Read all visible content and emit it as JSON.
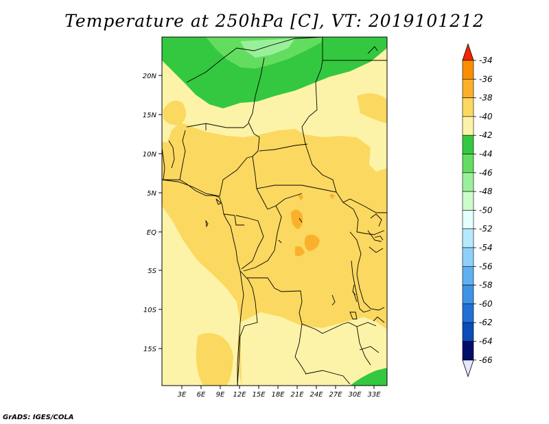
{
  "title": "Temperature at 250hPa [C], VT: 2019101212",
  "footer": "GrADS: IGES/COLA",
  "map": {
    "lat_ticks": [
      "20N",
      "15N",
      "10N",
      "5N",
      "EQ",
      "5S",
      "10S",
      "15S"
    ],
    "lon_ticks": [
      "3E",
      "6E",
      "9E",
      "12E",
      "15E",
      "18E",
      "21E",
      "24E",
      "27E",
      "30E",
      "33E"
    ]
  },
  "colorbar": {
    "labels": [
      "-34",
      "-36",
      "-38",
      "-40",
      "-42",
      "-44",
      "-46",
      "-48",
      "-50",
      "-52",
      "-54",
      "-56",
      "-58",
      "-60",
      "-62",
      "-64",
      "-66"
    ],
    "colors": [
      "#fb5f00",
      "#fb8e00",
      "#fbb02c",
      "#fbd860",
      "#fdf3a8",
      "#34c840",
      "#63dd5f",
      "#9af09a",
      "#ccfccc",
      "#e3fffe",
      "#b7e9fd",
      "#8ed0fa",
      "#5fb0f0",
      "#3f93e6",
      "#2170d7",
      "#0a4cb9",
      "#000d6a"
    ],
    "top_arrow_color": "#f42400",
    "bottom_arrow_color": "#e6e6ff"
  },
  "field_colors": {
    "c40_42": "#fdf3a8",
    "c38_40": "#fbd860",
    "c36_38": "#fbb02c",
    "c44_46": "#34c840",
    "c46_48": "#63dd5f",
    "c48_50": "#9af09a"
  }
}
